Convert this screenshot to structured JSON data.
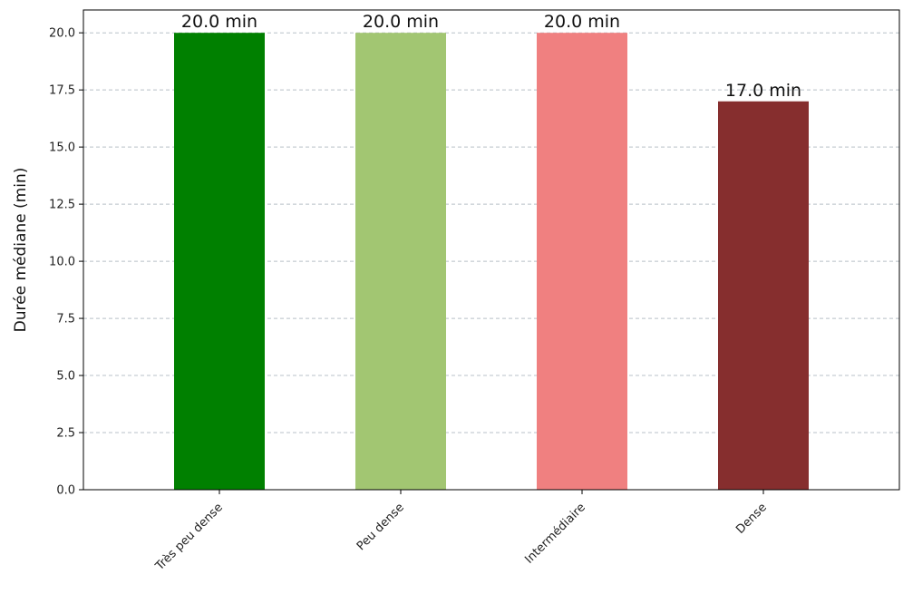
{
  "chart_data": {
    "type": "bar",
    "categories": [
      "Très peu dense",
      "Peu dense",
      "Intermédiaire",
      "Dense"
    ],
    "values": [
      20.0,
      20.0,
      20.0,
      17.0
    ],
    "data_labels": [
      "20.0 min",
      "20.0 min",
      "20.0 min",
      "17.0 min"
    ],
    "colors": [
      "#008000",
      "#a2c672",
      "#f08080",
      "#862e2e"
    ],
    "title": "",
    "xlabel": "",
    "ylabel": "Durée médiane (min)",
    "ylim": [
      0,
      21
    ],
    "yticks": [
      0.0,
      2.5,
      5.0,
      7.5,
      10.0,
      12.5,
      15.0,
      17.5,
      20.0
    ],
    "ytick_labels": [
      "0.0",
      "2.5",
      "5.0",
      "7.5",
      "10.0",
      "12.5",
      "15.0",
      "17.5",
      "20.0"
    ],
    "grid": {
      "y": true,
      "x": false,
      "style": "dashed"
    },
    "xtick_rotation": 45
  }
}
